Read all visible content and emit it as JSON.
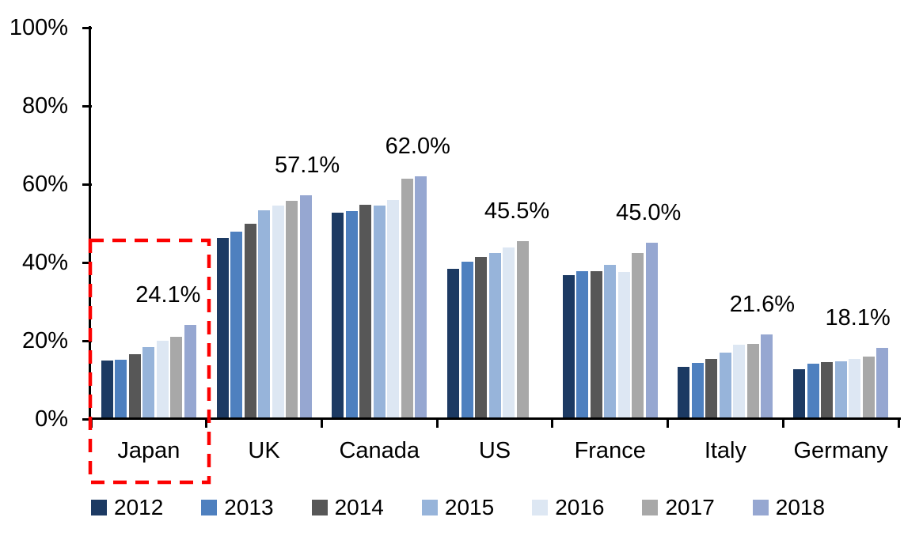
{
  "chart_data": {
    "type": "bar",
    "title": "",
    "xlabel": "",
    "ylabel": "",
    "ylim": [
      0,
      100
    ],
    "grid": false,
    "legend_position": "bottom",
    "y_ticks": [
      "0%",
      "20%",
      "40%",
      "60%",
      "80%",
      "100%"
    ],
    "y_tick_values": [
      0,
      20,
      40,
      60,
      80,
      100
    ],
    "categories": [
      "Japan",
      "UK",
      "Canada",
      "US",
      "France",
      "Italy",
      "Germany"
    ],
    "series": [
      {
        "name": "2012",
        "color": "#1C3A63",
        "values": [
          15.0,
          46.3,
          52.8,
          38.4,
          36.7,
          13.3,
          12.7
        ]
      },
      {
        "name": "2013",
        "color": "#4E80BF",
        "values": [
          15.2,
          47.9,
          53.2,
          40.2,
          37.8,
          14.3,
          14.1
        ]
      },
      {
        "name": "2014",
        "color": "#575757",
        "values": [
          16.6,
          50.0,
          54.7,
          41.4,
          37.8,
          15.4,
          14.5
        ]
      },
      {
        "name": "2015",
        "color": "#97B4DA",
        "values": [
          18.3,
          53.3,
          54.5,
          42.4,
          39.4,
          17.0,
          14.7
        ]
      },
      {
        "name": "2016",
        "color": "#DDE7F3",
        "values": [
          20.0,
          54.5,
          55.9,
          43.8,
          37.5,
          19.0,
          15.4
        ]
      },
      {
        "name": "2017",
        "color": "#A8A8A8",
        "values": [
          21.1,
          55.7,
          61.4,
          45.5,
          42.5,
          19.2,
          16.0
        ]
      },
      {
        "name": "2018",
        "color": "#96A7D1",
        "values": [
          24.1,
          57.1,
          62.0,
          null,
          45.0,
          21.6,
          18.1
        ]
      }
    ],
    "data_labels": [
      "24.1%",
      "57.1%",
      "62.0%",
      "45.5%",
      "45.0%",
      "21.6%",
      "18.1%"
    ],
    "highlight": {
      "category": "Japan",
      "style": "dashed-box",
      "color": "#FC0101"
    }
  }
}
